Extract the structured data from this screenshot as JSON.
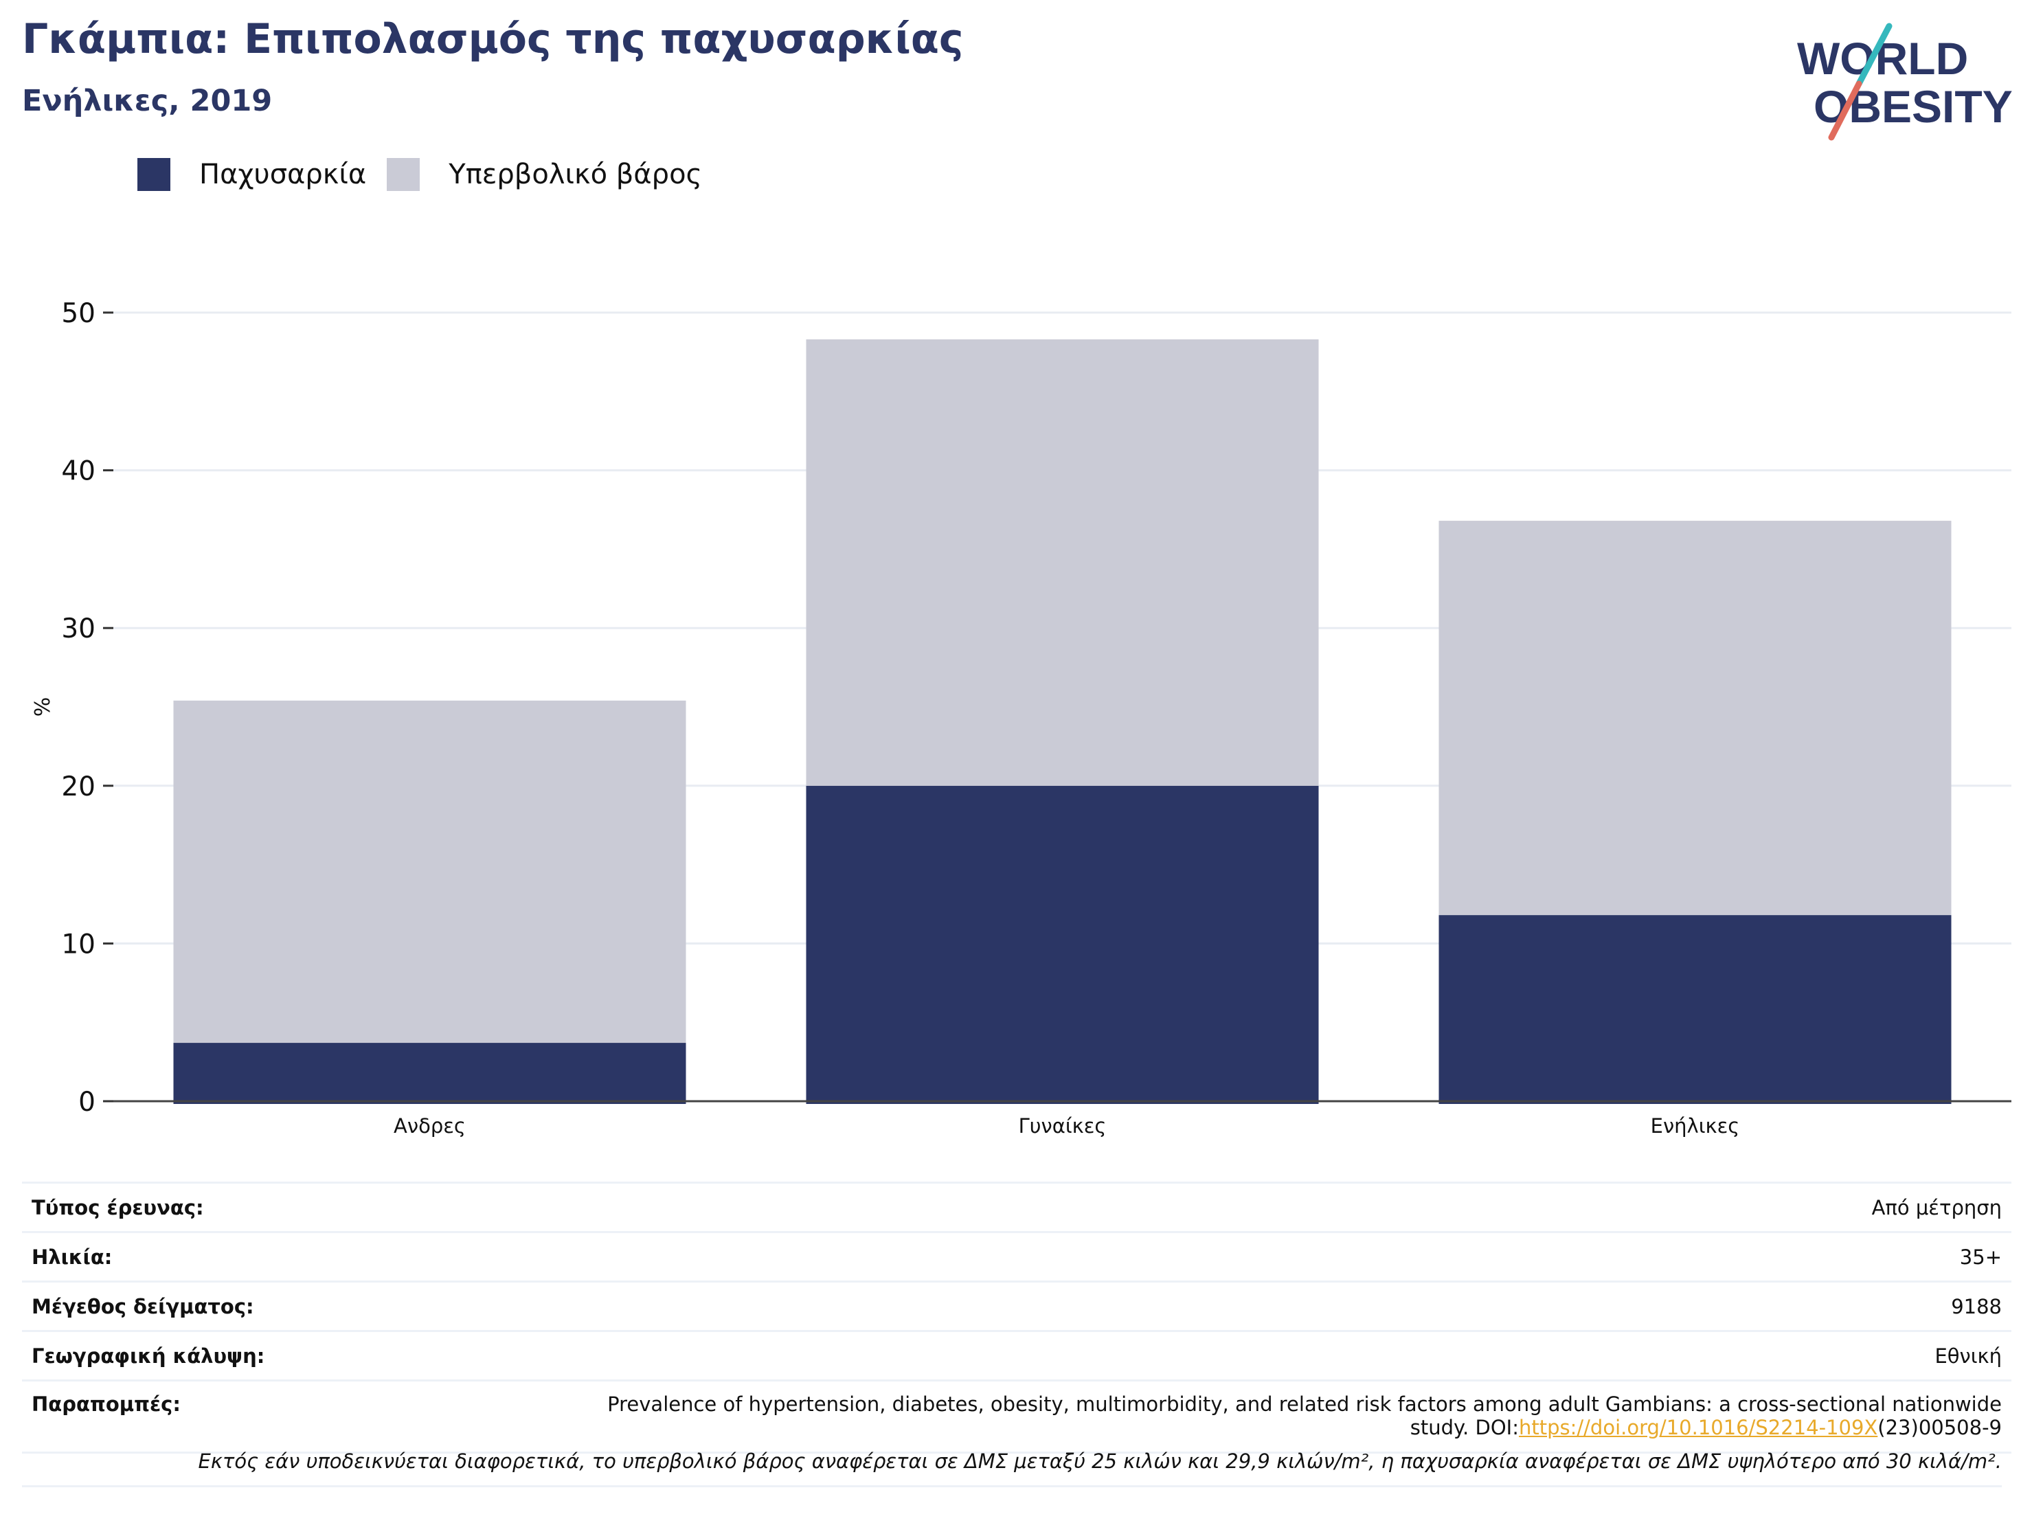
{
  "header": {
    "title": "Γκάμπια: Επιπολασμός της παχυσαρκίας",
    "subtitle": "Ενήλικες, 2019"
  },
  "logo": {
    "line1": "WORLD",
    "line2": "OBESITY"
  },
  "colors": {
    "obesity": "#2b3665",
    "overweight": "#cacbd6",
    "accent_teal": "#35b8bd",
    "accent_red": "#e06b5c"
  },
  "chart_data": {
    "type": "bar",
    "stacked": true,
    "categories": [
      "Ανδρες",
      "Γυναίκες",
      "Ενήλικες"
    ],
    "series": [
      {
        "name": "Παχυσαρκία",
        "values": [
          3.7,
          20.0,
          11.8
        ]
      },
      {
        "name": "Υπερβολικό βάρος",
        "values": [
          21.7,
          28.3,
          25.0
        ]
      }
    ],
    "xlabel": "",
    "ylabel": "%",
    "ylim": [
      0,
      50
    ],
    "yticks": [
      0,
      10,
      20,
      30,
      40,
      50
    ],
    "legend_position": "top-left",
    "grid": true
  },
  "meta": [
    {
      "key": "Τύπος έρευνας:",
      "value": "Από μέτρηση"
    },
    {
      "key": "Ηλικία:",
      "value": "35+"
    },
    {
      "key": "Μέγεθος δείγματος:",
      "value": "9188"
    },
    {
      "key": "Γεωγραφική κάλυψη:",
      "value": "Εθνική"
    }
  ],
  "reference": {
    "key": "Παραπομπές:",
    "text_line1": "Prevalence of hypertension, diabetes, obesity, multimorbidity, and related risk factors among adult Gambians: a cross-sectional nationwide",
    "text_line2_prefix": "study. DOI:",
    "doi_link": "https://doi.org/10.1016/S2214-109X",
    "text_line2_suffix": "(23)00508-9"
  },
  "footnote": "Εκτός εάν υποδεικνύεται διαφορετικά, το υπερβολικό βάρος αναφέρεται σε ΔΜΣ μεταξύ 25 κιλών και 29,9 κιλών/m², η παχυσαρκία αναφέρεται σε ΔΜΣ υψηλότερο από 30 κιλά/m²."
}
